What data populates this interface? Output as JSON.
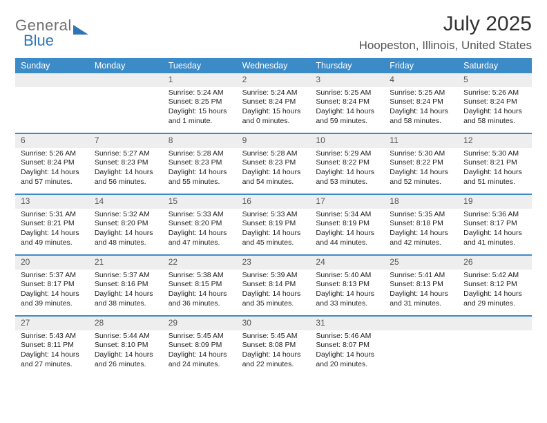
{
  "brand": {
    "word1": "General",
    "word2": "Blue"
  },
  "title": "July 2025",
  "location": "Hoopeston, Illinois, United States",
  "colors": {
    "header_bg": "#3b8bc9",
    "header_text": "#ffffff",
    "daynum_bg": "#eeeeee",
    "row_border": "#3b8bc9",
    "brand_gray": "#6f6f6f",
    "brand_blue": "#2e75b6",
    "text": "#222222",
    "background": "#ffffff"
  },
  "calendar": {
    "type": "table",
    "columns": [
      "Sunday",
      "Monday",
      "Tuesday",
      "Wednesday",
      "Thursday",
      "Friday",
      "Saturday"
    ],
    "weeks": [
      [
        null,
        null,
        {
          "n": "1",
          "sr": "Sunrise: 5:24 AM",
          "ss": "Sunset: 8:25 PM",
          "d1": "Daylight: 15 hours",
          "d2": "and 1 minute."
        },
        {
          "n": "2",
          "sr": "Sunrise: 5:24 AM",
          "ss": "Sunset: 8:24 PM",
          "d1": "Daylight: 15 hours",
          "d2": "and 0 minutes."
        },
        {
          "n": "3",
          "sr": "Sunrise: 5:25 AM",
          "ss": "Sunset: 8:24 PM",
          "d1": "Daylight: 14 hours",
          "d2": "and 59 minutes."
        },
        {
          "n": "4",
          "sr": "Sunrise: 5:25 AM",
          "ss": "Sunset: 8:24 PM",
          "d1": "Daylight: 14 hours",
          "d2": "and 58 minutes."
        },
        {
          "n": "5",
          "sr": "Sunrise: 5:26 AM",
          "ss": "Sunset: 8:24 PM",
          "d1": "Daylight: 14 hours",
          "d2": "and 58 minutes."
        }
      ],
      [
        {
          "n": "6",
          "sr": "Sunrise: 5:26 AM",
          "ss": "Sunset: 8:24 PM",
          "d1": "Daylight: 14 hours",
          "d2": "and 57 minutes."
        },
        {
          "n": "7",
          "sr": "Sunrise: 5:27 AM",
          "ss": "Sunset: 8:23 PM",
          "d1": "Daylight: 14 hours",
          "d2": "and 56 minutes."
        },
        {
          "n": "8",
          "sr": "Sunrise: 5:28 AM",
          "ss": "Sunset: 8:23 PM",
          "d1": "Daylight: 14 hours",
          "d2": "and 55 minutes."
        },
        {
          "n": "9",
          "sr": "Sunrise: 5:28 AM",
          "ss": "Sunset: 8:23 PM",
          "d1": "Daylight: 14 hours",
          "d2": "and 54 minutes."
        },
        {
          "n": "10",
          "sr": "Sunrise: 5:29 AM",
          "ss": "Sunset: 8:22 PM",
          "d1": "Daylight: 14 hours",
          "d2": "and 53 minutes."
        },
        {
          "n": "11",
          "sr": "Sunrise: 5:30 AM",
          "ss": "Sunset: 8:22 PM",
          "d1": "Daylight: 14 hours",
          "d2": "and 52 minutes."
        },
        {
          "n": "12",
          "sr": "Sunrise: 5:30 AM",
          "ss": "Sunset: 8:21 PM",
          "d1": "Daylight: 14 hours",
          "d2": "and 51 minutes."
        }
      ],
      [
        {
          "n": "13",
          "sr": "Sunrise: 5:31 AM",
          "ss": "Sunset: 8:21 PM",
          "d1": "Daylight: 14 hours",
          "d2": "and 49 minutes."
        },
        {
          "n": "14",
          "sr": "Sunrise: 5:32 AM",
          "ss": "Sunset: 8:20 PM",
          "d1": "Daylight: 14 hours",
          "d2": "and 48 minutes."
        },
        {
          "n": "15",
          "sr": "Sunrise: 5:33 AM",
          "ss": "Sunset: 8:20 PM",
          "d1": "Daylight: 14 hours",
          "d2": "and 47 minutes."
        },
        {
          "n": "16",
          "sr": "Sunrise: 5:33 AM",
          "ss": "Sunset: 8:19 PM",
          "d1": "Daylight: 14 hours",
          "d2": "and 45 minutes."
        },
        {
          "n": "17",
          "sr": "Sunrise: 5:34 AM",
          "ss": "Sunset: 8:19 PM",
          "d1": "Daylight: 14 hours",
          "d2": "and 44 minutes."
        },
        {
          "n": "18",
          "sr": "Sunrise: 5:35 AM",
          "ss": "Sunset: 8:18 PM",
          "d1": "Daylight: 14 hours",
          "d2": "and 42 minutes."
        },
        {
          "n": "19",
          "sr": "Sunrise: 5:36 AM",
          "ss": "Sunset: 8:17 PM",
          "d1": "Daylight: 14 hours",
          "d2": "and 41 minutes."
        }
      ],
      [
        {
          "n": "20",
          "sr": "Sunrise: 5:37 AM",
          "ss": "Sunset: 8:17 PM",
          "d1": "Daylight: 14 hours",
          "d2": "and 39 minutes."
        },
        {
          "n": "21",
          "sr": "Sunrise: 5:37 AM",
          "ss": "Sunset: 8:16 PM",
          "d1": "Daylight: 14 hours",
          "d2": "and 38 minutes."
        },
        {
          "n": "22",
          "sr": "Sunrise: 5:38 AM",
          "ss": "Sunset: 8:15 PM",
          "d1": "Daylight: 14 hours",
          "d2": "and 36 minutes."
        },
        {
          "n": "23",
          "sr": "Sunrise: 5:39 AM",
          "ss": "Sunset: 8:14 PM",
          "d1": "Daylight: 14 hours",
          "d2": "and 35 minutes."
        },
        {
          "n": "24",
          "sr": "Sunrise: 5:40 AM",
          "ss": "Sunset: 8:13 PM",
          "d1": "Daylight: 14 hours",
          "d2": "and 33 minutes."
        },
        {
          "n": "25",
          "sr": "Sunrise: 5:41 AM",
          "ss": "Sunset: 8:13 PM",
          "d1": "Daylight: 14 hours",
          "d2": "and 31 minutes."
        },
        {
          "n": "26",
          "sr": "Sunrise: 5:42 AM",
          "ss": "Sunset: 8:12 PM",
          "d1": "Daylight: 14 hours",
          "d2": "and 29 minutes."
        }
      ],
      [
        {
          "n": "27",
          "sr": "Sunrise: 5:43 AM",
          "ss": "Sunset: 8:11 PM",
          "d1": "Daylight: 14 hours",
          "d2": "and 27 minutes."
        },
        {
          "n": "28",
          "sr": "Sunrise: 5:44 AM",
          "ss": "Sunset: 8:10 PM",
          "d1": "Daylight: 14 hours",
          "d2": "and 26 minutes."
        },
        {
          "n": "29",
          "sr": "Sunrise: 5:45 AM",
          "ss": "Sunset: 8:09 PM",
          "d1": "Daylight: 14 hours",
          "d2": "and 24 minutes."
        },
        {
          "n": "30",
          "sr": "Sunrise: 5:45 AM",
          "ss": "Sunset: 8:08 PM",
          "d1": "Daylight: 14 hours",
          "d2": "and 22 minutes."
        },
        {
          "n": "31",
          "sr": "Sunrise: 5:46 AM",
          "ss": "Sunset: 8:07 PM",
          "d1": "Daylight: 14 hours",
          "d2": "and 20 minutes."
        },
        null,
        null
      ]
    ]
  }
}
